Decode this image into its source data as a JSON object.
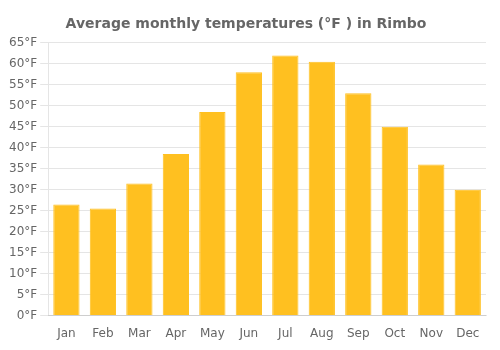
{
  "chart_data": {
    "type": "bar",
    "title": "Average monthly temperatures (°F ) in Rimbo",
    "categories": [
      "Jan",
      "Feb",
      "Mar",
      "Apr",
      "May",
      "Jun",
      "Jul",
      "Aug",
      "Sep",
      "Oct",
      "Nov",
      "Dec"
    ],
    "values": [
      26.5,
      25.5,
      31.5,
      38.5,
      48.5,
      58.0,
      62.0,
      60.5,
      53.0,
      45.0,
      36.0,
      30.0
    ],
    "color": "#FFC020",
    "ylim": [
      0,
      65
    ],
    "yticks": [
      {
        "value": 0,
        "label": "0°F"
      },
      {
        "value": 5,
        "label": "5°F"
      },
      {
        "value": 10,
        "label": "10°F"
      },
      {
        "value": 15,
        "label": "15°F"
      },
      {
        "value": 20,
        "label": "20°F"
      },
      {
        "value": 25,
        "label": "25°F"
      },
      {
        "value": 30,
        "label": "30°F"
      },
      {
        "value": 35,
        "label": "35°F"
      },
      {
        "value": 40,
        "label": "40°F"
      },
      {
        "value": 45,
        "label": "45°F"
      },
      {
        "value": 50,
        "label": "50°F"
      },
      {
        "value": 55,
        "label": "55°F"
      },
      {
        "value": 60,
        "label": "60°F"
      },
      {
        "value": 65,
        "label": "65°F"
      }
    ],
    "grid": true
  }
}
